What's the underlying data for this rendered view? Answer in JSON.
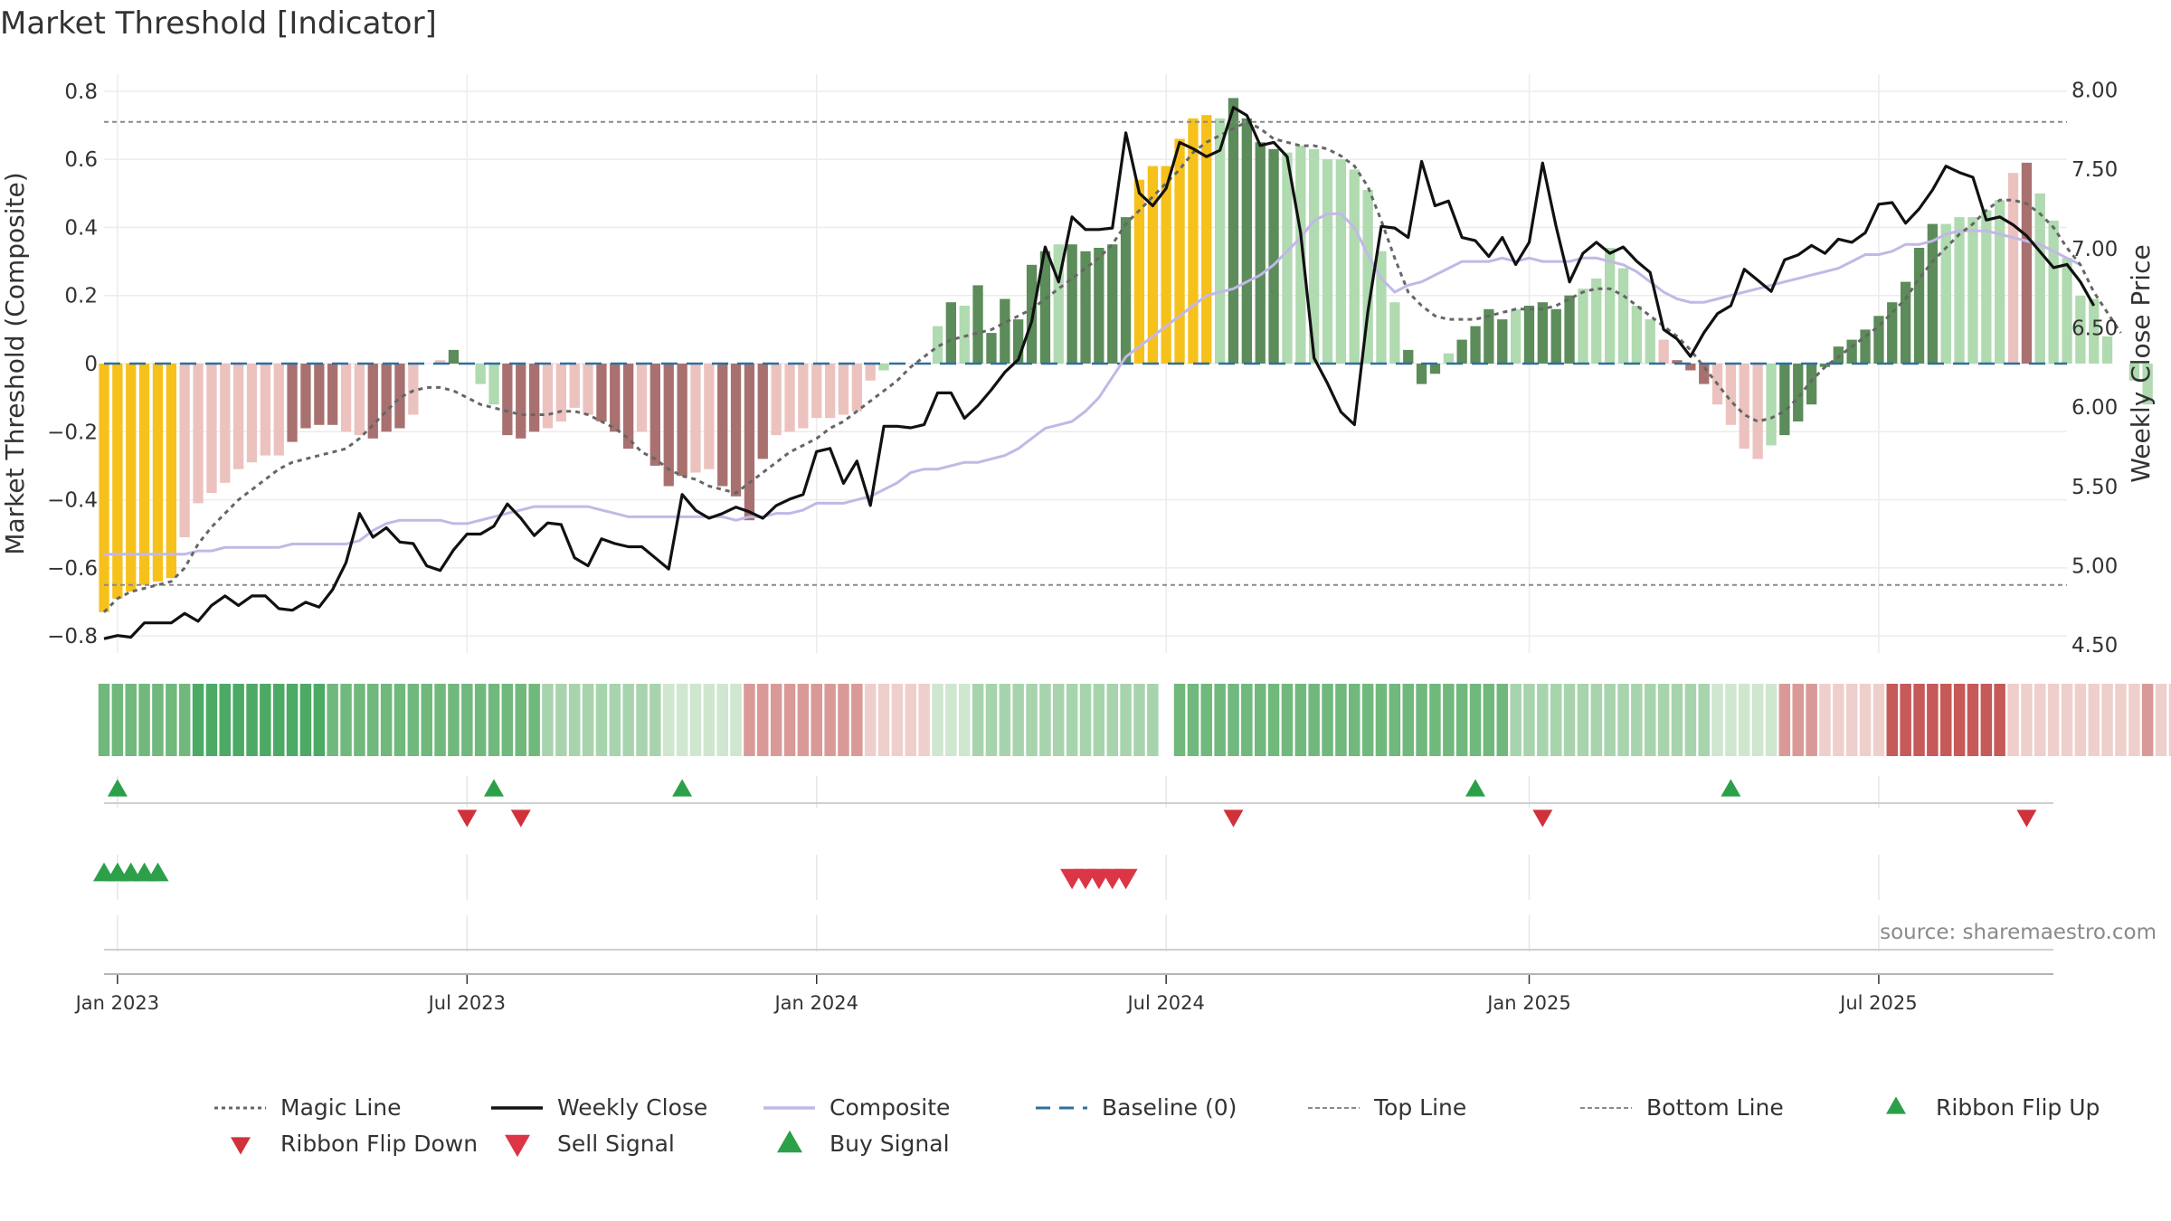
{
  "chart_title": "Market Threshold [Indicator]",
  "source_note": "source: sharemaestro.com",
  "chart_data": {
    "type": "bar",
    "title": "Market Threshold [Indicator]",
    "ylabel": "Market Threshold (Composite)",
    "y2label": "Weekly Close Price",
    "ylim": [
      -0.85,
      0.85
    ],
    "y2lim": [
      4.45,
      8.1
    ],
    "yticks": [
      -0.8,
      -0.6,
      -0.4,
      -0.2,
      0,
      0.2,
      0.4,
      0.6,
      0.8
    ],
    "ytick_labels": [
      "−0.8",
      "−0.6",
      "−0.4",
      "−0.2",
      "0",
      "0.2",
      "0.4",
      "0.6",
      "0.8"
    ],
    "y2ticks": [
      "4.50",
      "5.00",
      "5.50",
      "6.00",
      "6.50",
      "7.00",
      "7.50",
      "8.00"
    ],
    "xlim": [
      "2022-12-26",
      "2025-10-13"
    ],
    "x_ticks": [
      {
        "date": "2023-01-02",
        "label": "Jan 2023"
      },
      {
        "date": "2023-07-03",
        "label": "Jul 2023"
      },
      {
        "date": "2024-01-01",
        "label": "Jan 2024"
      },
      {
        "date": "2024-07-01",
        "label": "Jul 2024"
      },
      {
        "date": "2025-01-06",
        "label": "Jan 2025"
      },
      {
        "date": "2025-07-07",
        "label": "Jul 2025"
      }
    ],
    "start_date": "2022-12-26",
    "top_line": 0.71,
    "bottom_line": -0.65,
    "grid": true,
    "legend_position": "bottom",
    "colors": {
      "dark_green": "#5b8c5a",
      "light_green": "#b0dab0",
      "dark_red": "#a87170",
      "light_red": "#ecc2bf",
      "extreme": "#f6c11a",
      "composite": "#c2b8e6",
      "weekly_close": "#111111",
      "magic_line": "#666666",
      "baseline": "#2f6f9e",
      "flip_up": "#2ca048",
      "flip_down": "#d0313b",
      "sell": "#dc3545",
      "buy": "#2ca048"
    },
    "composite_bars": [
      -0.73,
      -0.69,
      -0.67,
      -0.65,
      -0.64,
      -0.63,
      -0.51,
      -0.41,
      -0.38,
      -0.35,
      -0.31,
      -0.29,
      -0.27,
      -0.27,
      -0.23,
      -0.19,
      -0.18,
      -0.18,
      -0.2,
      -0.21,
      -0.22,
      -0.2,
      -0.19,
      -0.15,
      0,
      0.01,
      0.04,
      0,
      -0.06,
      -0.12,
      -0.21,
      -0.22,
      -0.2,
      -0.19,
      -0.17,
      -0.13,
      -0.15,
      -0.17,
      -0.2,
      -0.25,
      -0.2,
      -0.3,
      -0.36,
      -0.33,
      -0.32,
      -0.31,
      -0.36,
      -0.39,
      -0.46,
      -0.28,
      -0.21,
      -0.2,
      -0.19,
      -0.16,
      -0.16,
      -0.15,
      -0.14,
      -0.05,
      -0.02,
      0,
      0,
      0,
      0.11,
      0.18,
      0.17,
      0.23,
      0.09,
      0.19,
      0.13,
      0.29,
      0.33,
      0.35,
      0.35,
      0.33,
      0.34,
      0.35,
      0.43,
      0.54,
      0.58,
      0.58,
      0.66,
      0.72,
      0.73,
      0.72,
      0.78,
      0.72,
      0.65,
      0.63,
      0.62,
      0.64,
      0.63,
      0.6,
      0.6,
      0.57,
      0.51,
      0.33,
      0.18,
      0.04,
      -0.06,
      -0.03,
      0.03,
      0.07,
      0.11,
      0.16,
      0.13,
      0.16,
      0.17,
      0.18,
      0.16,
      0.2,
      0.22,
      0.25,
      0.34,
      0.28,
      0.17,
      0.13,
      0.07,
      0.01,
      -0.02,
      -0.06,
      -0.12,
      -0.18,
      -0.25,
      -0.28,
      -0.24,
      -0.21,
      -0.17,
      -0.12,
      -0.01,
      0.05,
      0.07,
      0.1,
      0.14,
      0.18,
      0.24,
      0.34,
      0.41,
      0.41,
      0.43,
      0.43,
      0.45,
      0.48,
      0.56,
      0.59,
      0.5,
      0.42,
      0.31,
      0.2,
      0.19,
      0.08,
      0,
      -0.05,
      -0.12
    ],
    "bar_tones": "EEEEEEllllllllDDDDllDDDlllGGLLDDDllllDDDlDDDllDDDDllllllllLLGGLGLGGGGGGLGGGGGEEEEEELGGGGLLLLLLLLLGGGLGGGGLGGGGLLLLLLlDDDllllLGGGGGGGGGGGGLLLLLlD",
    "weekly_close": [
      4.54,
      4.56,
      4.55,
      4.64,
      4.64,
      4.64,
      4.7,
      4.65,
      4.75,
      4.81,
      4.75,
      4.81,
      4.81,
      4.73,
      4.72,
      4.77,
      4.74,
      4.85,
      5.02,
      5.33,
      5.18,
      5.24,
      5.15,
      5.14,
      5.0,
      4.97,
      5.1,
      5.2,
      5.2,
      5.25,
      5.39,
      5.3,
      5.19,
      5.27,
      5.26,
      5.05,
      5.0,
      5.17,
      5.14,
      5.12,
      5.12,
      5.05,
      4.98,
      5.45,
      5.35,
      5.3,
      5.33,
      5.37,
      5.34,
      5.3,
      5.38,
      5.42,
      5.45,
      5.72,
      5.74,
      5.52,
      5.66,
      5.38,
      5.88,
      5.88,
      5.87,
      5.89,
      6.09,
      6.09,
      5.93,
      6.01,
      6.11,
      6.22,
      6.3,
      6.54,
      7.01,
      6.79,
      7.2,
      7.12,
      7.12,
      7.13,
      7.73,
      7.35,
      7.27,
      7.38,
      7.67,
      7.63,
      7.58,
      7.62,
      7.89,
      7.84,
      7.65,
      7.67,
      7.58,
      7.1,
      6.31,
      6.15,
      5.97,
      5.89,
      6.6,
      7.14,
      7.13,
      7.07,
      7.55,
      7.27,
      7.3,
      7.07,
      7.05,
      6.95,
      7.07,
      6.9,
      7.04,
      7.54,
      7.14,
      6.79,
      6.97,
      7.04,
      6.97,
      7.01,
      6.92,
      6.85,
      6.49,
      6.43,
      6.32,
      6.47,
      6.59,
      6.64,
      6.87,
      6.8,
      6.73,
      6.93,
      6.96,
      7.02,
      6.97,
      7.06,
      7.04,
      7.1,
      7.28,
      7.29,
      7.16,
      7.25,
      7.37,
      7.52,
      7.48,
      7.45,
      7.18,
      7.2,
      7.15,
      7.08,
      6.98,
      6.88,
      6.9,
      6.79,
      6.64
    ],
    "composite_line": [
      -0.56,
      -0.56,
      -0.56,
      -0.56,
      -0.56,
      -0.56,
      -0.56,
      -0.55,
      -0.55,
      -0.54,
      -0.54,
      -0.54,
      -0.54,
      -0.54,
      -0.53,
      -0.53,
      -0.53,
      -0.53,
      -0.53,
      -0.52,
      -0.49,
      -0.47,
      -0.46,
      -0.46,
      -0.46,
      -0.46,
      -0.47,
      -0.47,
      -0.46,
      -0.45,
      -0.44,
      -0.43,
      -0.42,
      -0.42,
      -0.42,
      -0.42,
      -0.42,
      -0.43,
      -0.44,
      -0.45,
      -0.45,
      -0.45,
      -0.45,
      -0.45,
      -0.45,
      -0.45,
      -0.45,
      -0.46,
      -0.45,
      -0.45,
      -0.44,
      -0.44,
      -0.43,
      -0.41,
      -0.41,
      -0.41,
      -0.4,
      -0.39,
      -0.37,
      -0.35,
      -0.32,
      -0.31,
      -0.31,
      -0.3,
      -0.29,
      -0.29,
      -0.28,
      -0.27,
      -0.25,
      -0.22,
      -0.19,
      -0.18,
      -0.17,
      -0.14,
      -0.1,
      -0.04,
      0.02,
      0.05,
      0.08,
      0.11,
      0.14,
      0.17,
      0.2,
      0.21,
      0.22,
      0.24,
      0.26,
      0.29,
      0.33,
      0.37,
      0.42,
      0.44,
      0.44,
      0.4,
      0.32,
      0.25,
      0.21,
      0.23,
      0.24,
      0.26,
      0.28,
      0.3,
      0.3,
      0.3,
      0.31,
      0.3,
      0.31,
      0.3,
      0.3,
      0.3,
      0.31,
      0.31,
      0.3,
      0.29,
      0.27,
      0.24,
      0.21,
      0.19,
      0.18,
      0.18,
      0.19,
      0.2,
      0.21,
      0.22,
      0.23,
      0.24,
      0.25,
      0.26,
      0.27,
      0.28,
      0.3,
      0.32,
      0.32,
      0.33,
      0.35,
      0.35,
      0.36,
      0.38,
      0.39,
      0.39,
      0.39,
      0.38,
      0.37,
      0.36,
      0.35,
      0.33,
      0.31,
      0.29
    ],
    "magic_line": [
      -0.73,
      -0.69,
      -0.67,
      -0.66,
      -0.65,
      -0.64,
      -0.6,
      -0.53,
      -0.48,
      -0.44,
      -0.4,
      -0.37,
      -0.34,
      -0.31,
      -0.29,
      -0.28,
      -0.27,
      -0.26,
      -0.25,
      -0.22,
      -0.18,
      -0.14,
      -0.1,
      -0.08,
      -0.07,
      -0.07,
      -0.08,
      -0.1,
      -0.12,
      -0.13,
      -0.14,
      -0.15,
      -0.15,
      -0.15,
      -0.14,
      -0.14,
      -0.15,
      -0.17,
      -0.19,
      -0.22,
      -0.26,
      -0.28,
      -0.31,
      -0.33,
      -0.34,
      -0.36,
      -0.37,
      -0.38,
      -0.35,
      -0.32,
      -0.29,
      -0.26,
      -0.24,
      -0.22,
      -0.19,
      -0.17,
      -0.14,
      -0.11,
      -0.08,
      -0.05,
      -0.01,
      0.02,
      0.05,
      0.07,
      0.08,
      0.09,
      0.1,
      0.12,
      0.14,
      0.16,
      0.19,
      0.22,
      0.25,
      0.28,
      0.31,
      0.35,
      0.41,
      0.45,
      0.49,
      0.53,
      0.57,
      0.62,
      0.65,
      0.67,
      0.69,
      0.71,
      0.69,
      0.66,
      0.65,
      0.64,
      0.64,
      0.63,
      0.61,
      0.58,
      0.52,
      0.42,
      0.31,
      0.21,
      0.17,
      0.14,
      0.13,
      0.13,
      0.13,
      0.14,
      0.15,
      0.16,
      0.16,
      0.16,
      0.17,
      0.19,
      0.21,
      0.22,
      0.22,
      0.2,
      0.17,
      0.14,
      0.11,
      0.08,
      0.04,
      -0.01,
      -0.06,
      -0.11,
      -0.15,
      -0.17,
      -0.16,
      -0.14,
      -0.1,
      -0.05,
      -0.01,
      0.02,
      0.05,
      0.08,
      0.11,
      0.15,
      0.19,
      0.25,
      0.3,
      0.34,
      0.38,
      0.41,
      0.45,
      0.48,
      0.48,
      0.47,
      0.44,
      0.4,
      0.34,
      0.29,
      0.21,
      0.15,
      0.09
    ],
    "ribbon_colors": "LLLLLLLMMMMMMMMMMLLLLLLLLLLLLLLLLSSSSSSSSSQQQQQQqqqqqqqqqqqqqqQQQSSSSSSSSSSSSSS_LLLLLLLLLLLLLLLLLLLLLLLLLSSSSSSSSSSSSSSSQQQQQqqqqqqqqrrrrrrrrrqqqqqqqqqqqqqqqqQQQQQQQQQqqqqqqqqqqqqqqqqqSSSSSSSSSSSLLLLLLLLLLLLLLLLLSSSSSSSSqqqq",
    "ribbon_flip_up": [
      "2023-01-02",
      "2023-07-17",
      "2023-10-23",
      "2024-12-09",
      "2025-04-21"
    ],
    "ribbon_flip_down": [
      "2023-07-03",
      "2023-07-31",
      "2024-08-05",
      "2025-01-13",
      "2025-09-22"
    ],
    "buy_signals": [
      "2022-12-26",
      "2023-01-02",
      "2023-01-09",
      "2023-01-16",
      "2023-01-23"
    ],
    "sell_signals": [
      "2024-05-13",
      "2024-05-20",
      "2024-05-27",
      "2024-06-03",
      "2024-06-10"
    ],
    "legend": [
      {
        "label": "Magic Line",
        "kind": "dotted",
        "color": "#666666"
      },
      {
        "label": "Weekly Close",
        "kind": "solid",
        "color": "#111111"
      },
      {
        "label": "Composite",
        "kind": "solid",
        "color": "#c2b8e6"
      },
      {
        "label": "Baseline (0)",
        "kind": "dashed",
        "color": "#2f6f9e"
      },
      {
        "label": "Top Line",
        "kind": "finedash",
        "color": "#8a8a8a"
      },
      {
        "label": "Bottom Line",
        "kind": "finedash",
        "color": "#8a8a8a"
      },
      {
        "label": "Ribbon Flip Up",
        "kind": "tri-up-small",
        "color": "#2ca048"
      },
      {
        "label": "Ribbon Flip Down",
        "kind": "tri-down-small",
        "color": "#d0313b"
      },
      {
        "label": "Sell Signal",
        "kind": "tri-down",
        "color": "#dc3545"
      },
      {
        "label": "Buy Signal",
        "kind": "tri-up",
        "color": "#2ca048"
      }
    ]
  }
}
